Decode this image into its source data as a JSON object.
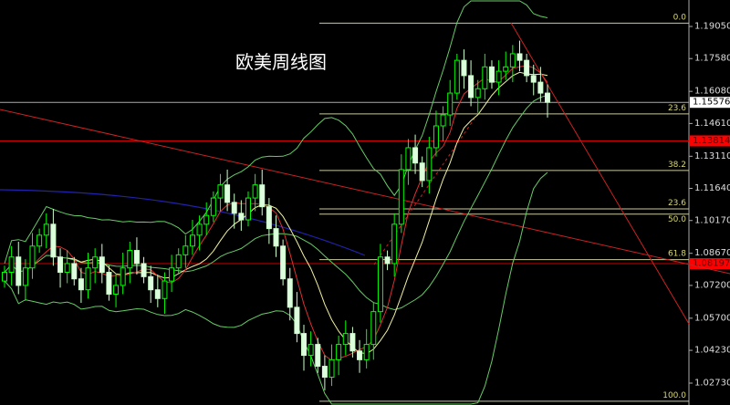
{
  "title": "欧美周线图",
  "chart_data": {
    "type": "candlestick",
    "title": "欧美周线图",
    "ylim": [
      1.019,
      1.199
    ],
    "y_ticks": [
      "1.19050",
      "1.17580",
      "1.16080",
      "1.14610",
      "1.13110",
      "1.11640",
      "1.10170",
      "1.08670",
      "1.07200",
      "1.05700",
      "1.04230",
      "1.02730"
    ],
    "current_price": {
      "label": "1.15576",
      "value": 1.15576
    },
    "marked_levels": [
      {
        "label": "1.13814",
        "value": 1.13814,
        "color": "#ff0000"
      },
      {
        "label": "1.08197",
        "value": 1.08197,
        "color": "#ff0000"
      }
    ],
    "fib_levels": [
      {
        "label": "0.0",
        "value": 1.192
      },
      {
        "label": "23.6",
        "value": 1.1505
      },
      {
        "label": "38.2",
        "value": 1.1246
      },
      {
        "label": "23.6",
        "value": 1.107
      },
      {
        "label": "50.0",
        "value": 1.1046
      },
      {
        "label": "61.8",
        "value": 1.0838
      },
      {
        "label": "100.0",
        "value": 1.019
      }
    ],
    "closes": [
      1.078,
      1.085,
      1.072,
      1.08,
      1.09,
      1.095,
      1.1,
      1.085,
      1.078,
      1.082,
      1.075,
      1.07,
      1.08,
      1.085,
      1.078,
      1.068,
      1.072,
      1.08,
      1.088,
      1.082,
      1.076,
      1.07,
      1.066,
      1.074,
      1.08,
      1.086,
      1.09,
      1.095,
      1.1,
      1.104,
      1.112,
      1.118,
      1.11,
      1.105,
      1.102,
      1.112,
      1.118,
      1.108,
      1.098,
      1.09,
      1.075,
      1.062,
      1.05,
      1.04,
      1.045,
      1.035,
      1.03,
      1.038,
      1.045,
      1.05,
      1.042,
      1.038,
      1.045,
      1.06,
      1.085,
      1.082,
      1.1,
      1.125,
      1.135,
      1.128,
      1.12,
      1.135,
      1.145,
      1.15,
      1.16,
      1.175,
      1.168,
      1.158,
      1.162,
      1.172,
      1.165,
      1.17,
      1.172,
      1.178,
      1.175,
      1.168,
      1.165,
      1.16,
      1.1558
    ],
    "indicators": [
      "bollinger-bands-20",
      "ma-5",
      "ma-10",
      "long-ma"
    ],
    "colors": {
      "up": "#00ff00",
      "down": "#ffffff",
      "fib": "#c8c8a0",
      "trend": "#cc2222",
      "bands": "#66cc66",
      "ma_long": "#2222aa"
    }
  }
}
